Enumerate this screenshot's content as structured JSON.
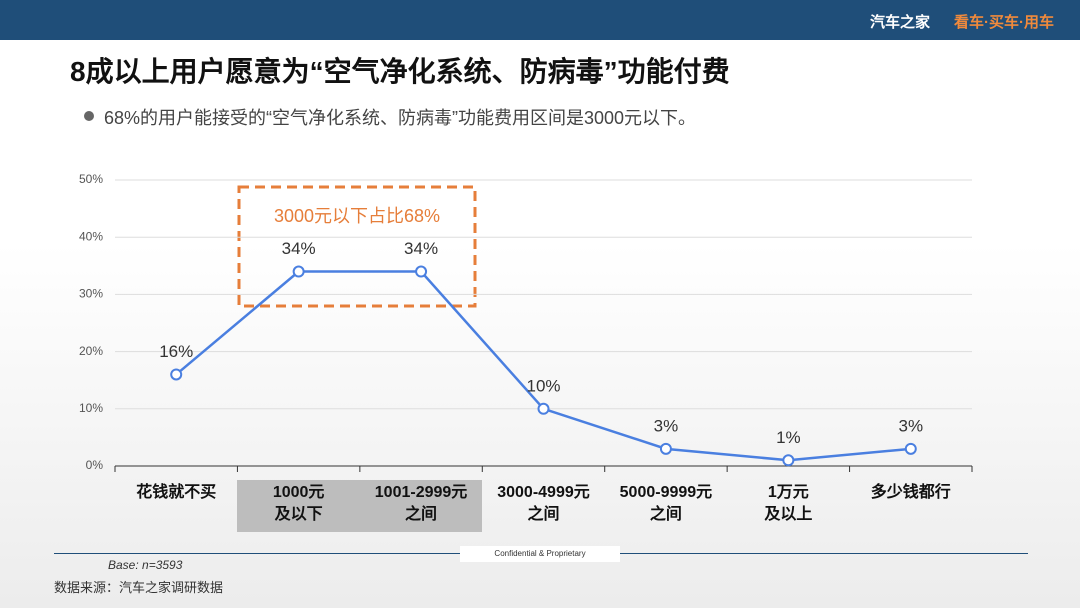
{
  "header": {
    "brand": "汽车之家",
    "slogan": "看车·买车·用车"
  },
  "chart_data": {
    "type": "line",
    "title": "8成以上用户愿意为“空气净化系统、防病毒”功能付费",
    "subtitle": "68%的用户能接受的“空气净化系统、防病毒”功能费用区间是3000元以下。",
    "annotation": "3000元以下占比68%",
    "categories": [
      "花钱就不买",
      "1000元\n及以下",
      "1001-2999元\n之间",
      "3000-4999元\n之间",
      "5000-9999元\n之间",
      "1万元\n及以上",
      "多少钱都行"
    ],
    "values": [
      16,
      34,
      34,
      10,
      3,
      1,
      3
    ],
    "value_labels": [
      "16%",
      "34%",
      "34%",
      "10%",
      "3%",
      "1%",
      "3%"
    ],
    "color": "#4a7fe0",
    "highlight": [
      1,
      2
    ],
    "ylim": [
      0,
      50
    ],
    "yticks": [
      {
        "value": 0,
        "label": "0%"
      },
      {
        "value": 10,
        "label": "10%"
      },
      {
        "value": 20,
        "label": "20%"
      },
      {
        "value": 30,
        "label": "30%"
      },
      {
        "value": 40,
        "label": "40%"
      },
      {
        "value": 50,
        "label": "50%"
      }
    ],
    "grid": true
  },
  "footer": {
    "base": "Base: n=3593",
    "confidential": "Confidential & Proprietary",
    "source": "数据来源：汽车之家调研数据"
  }
}
